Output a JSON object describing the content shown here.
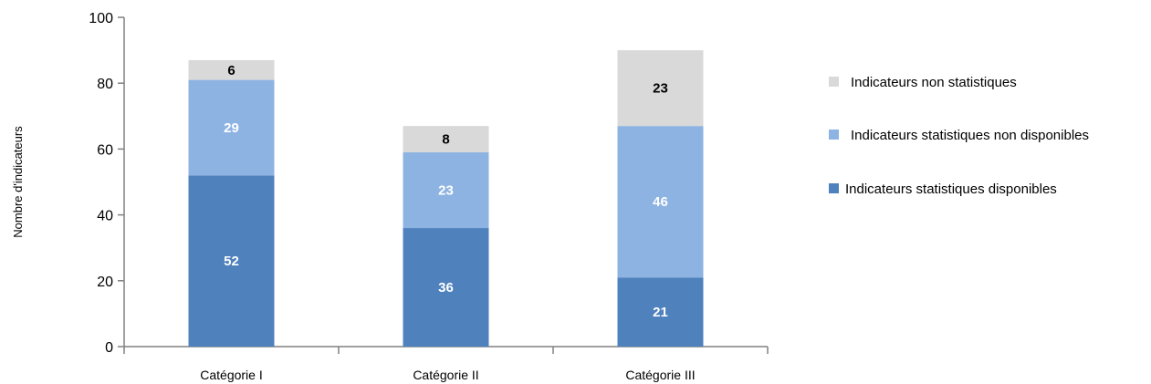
{
  "chart_data": {
    "type": "bar",
    "stacked": true,
    "title": "",
    "xlabel": "",
    "ylabel": "Nombre d'indicateurs",
    "ylim": [
      0,
      100
    ],
    "yticks": [
      "0",
      "20",
      "40",
      "60",
      "80",
      "100"
    ],
    "categories": [
      "Catégorie I",
      "Catégorie II",
      "Catégorie III"
    ],
    "series": [
      {
        "name": "Indicateurs statistiques disponibles",
        "values": [
          52,
          36,
          21
        ],
        "color": "#4f81bd",
        "label_color": "#ffffff"
      },
      {
        "name": "Indicateurs statistiques non disponibles",
        "values": [
          29,
          23,
          46
        ],
        "color": "#8db3e2",
        "label_color": "#ffffff"
      },
      {
        "name": "Indicateurs non statistiques",
        "values": [
          6,
          8,
          23
        ],
        "color": "#d9d9d9",
        "label_color": "#000000"
      }
    ],
    "legend_order": [
      "Indicateurs non statistiques",
      "Indicateurs statistiques non disponibles",
      "Indicateurs statistiques disponibles"
    ],
    "legend_position": "right",
    "grid": false
  }
}
